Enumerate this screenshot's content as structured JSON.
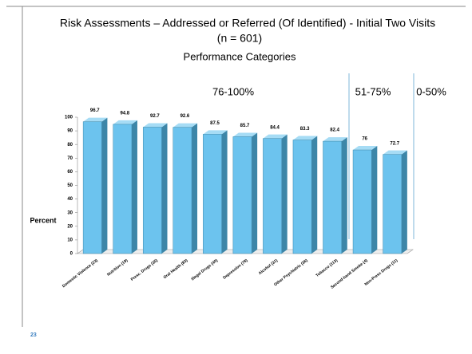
{
  "chart_data": {
    "type": "bar",
    "title": "Risk Assessments – Addressed or Referred (Of Identified) - Initial Two Visits",
    "subtitle": "(n = 601)",
    "caption": "Performance Categories",
    "ylabel": "Percent",
    "categories": [
      "Domestic Violence (23)",
      "Nutrition (19)",
      "Presc. Drugs (35)",
      "Oral Health (83)",
      "Illegal Drugs (40)",
      "Depression (78)",
      "Alcohol (31)",
      "Other Psychiatric (36)",
      "Tobacco (113)",
      "Second-hand Smoke (4)",
      "Non-Presc Drugs (11)"
    ],
    "values": [
      96.7,
      94.8,
      92.7,
      92.6,
      87.5,
      85.7,
      84.4,
      83.3,
      82.4,
      76,
      72.7
    ],
    "color": "#6cc3ee",
    "ylim": [
      0,
      100
    ],
    "yticks": [
      0,
      10,
      20,
      30,
      40,
      50,
      60,
      70,
      80,
      90,
      100
    ],
    "bands": [
      "76-100%",
      "51-75%",
      "0-50%"
    ],
    "page_number": "23"
  }
}
